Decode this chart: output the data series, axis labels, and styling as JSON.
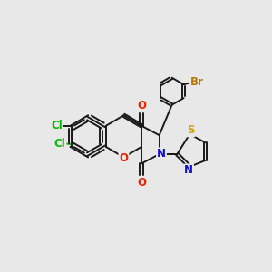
{
  "background_color": "#e8e8e8",
  "bond_color": "#1a1a1a",
  "atom_colors": {
    "Cl": "#00bb00",
    "O": "#ee2200",
    "N": "#1111cc",
    "S": "#ccaa00",
    "Br": "#bb7700",
    "C": "#1a1a1a"
  },
  "figsize": [
    3.0,
    3.0
  ],
  "dpi": 100
}
